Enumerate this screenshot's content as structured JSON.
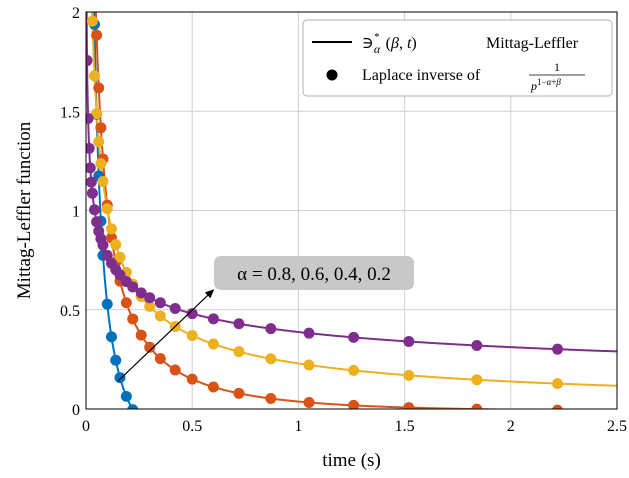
{
  "chart_data": {
    "type": "line",
    "xlabel": "time (s)",
    "ylabel": "Mittag-Leffler function",
    "xlim": [
      0,
      2.5
    ],
    "ylim": [
      0,
      2
    ],
    "xticks": [
      "0",
      "0.5",
      "1",
      "1.5",
      "2",
      "2.5"
    ],
    "yticks": [
      "0",
      "0.5",
      "1",
      "1.5",
      "2"
    ],
    "grid": true,
    "legend": {
      "placement": "top-right",
      "line_entry": "Mittag-Leffler",
      "marker_entry": "Laplace inverse of"
    },
    "annotation": {
      "text": "α = 0.8, 0.6, 0.4, 0.2",
      "arrow_from": [
        0.15,
        0.14
      ],
      "arrow_to": [
        0.6,
        0.6
      ]
    },
    "series": [
      {
        "alpha": 0.8,
        "color": "#0072bd"
      },
      {
        "alpha": 0.6,
        "color": "#d95319"
      },
      {
        "alpha": 0.4,
        "color": "#edb120"
      },
      {
        "alpha": 0.2,
        "color": "#7e2f8e"
      }
    ],
    "marker_x": [
      0.005,
      0.01,
      0.015,
      0.02,
      0.025,
      0.03,
      0.04,
      0.05,
      0.06,
      0.07,
      0.08,
      0.1,
      0.12,
      0.14,
      0.16,
      0.19,
      0.22,
      0.26,
      0.3,
      0.35,
      0.42,
      0.5,
      0.6,
      0.72,
      0.87,
      1.05,
      1.26,
      1.52,
      1.84,
      2.22
    ]
  }
}
